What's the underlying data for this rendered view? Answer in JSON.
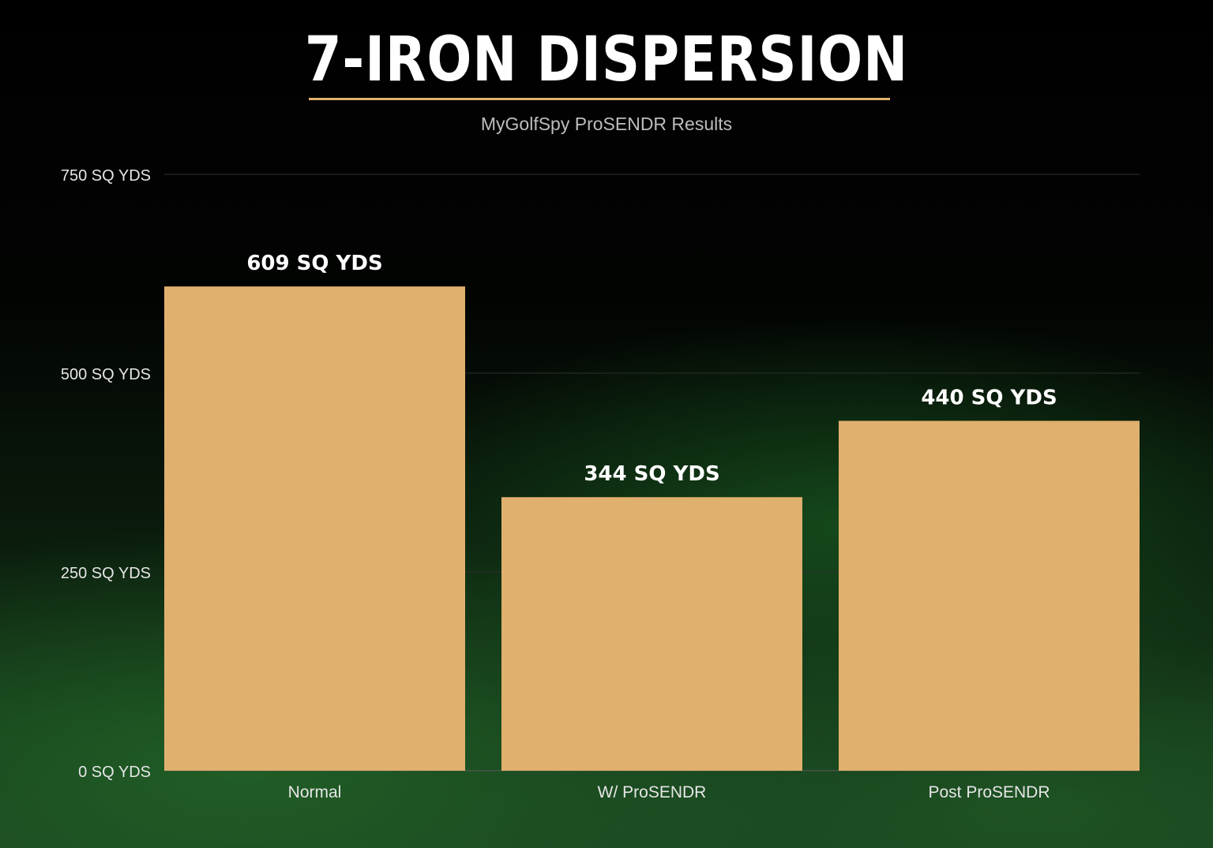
{
  "chart_data": {
    "type": "bar",
    "title": "7-IRON DISPERSION",
    "subtitle": "MyGolfSpy ProSENDR Results",
    "categories": [
      "Normal",
      "W/ ProSENDR",
      "Post ProSENDR"
    ],
    "values": [
      609,
      344,
      440
    ],
    "data_labels": [
      "609 SQ YDS",
      "344 SQ YDS",
      "440 SQ YDS"
    ],
    "ylim": [
      0,
      750
    ],
    "yticks": [
      0,
      250,
      500,
      750
    ],
    "ytick_labels": [
      "0 SQ YDS",
      "250 SQ YDS",
      "500 SQ YDS",
      "750 SQ YDS"
    ],
    "xlabel": "",
    "ylabel": "",
    "grid": true,
    "legend": "none",
    "bar_color": "#e0b06e",
    "title_underline_color": "#e0b06e"
  }
}
